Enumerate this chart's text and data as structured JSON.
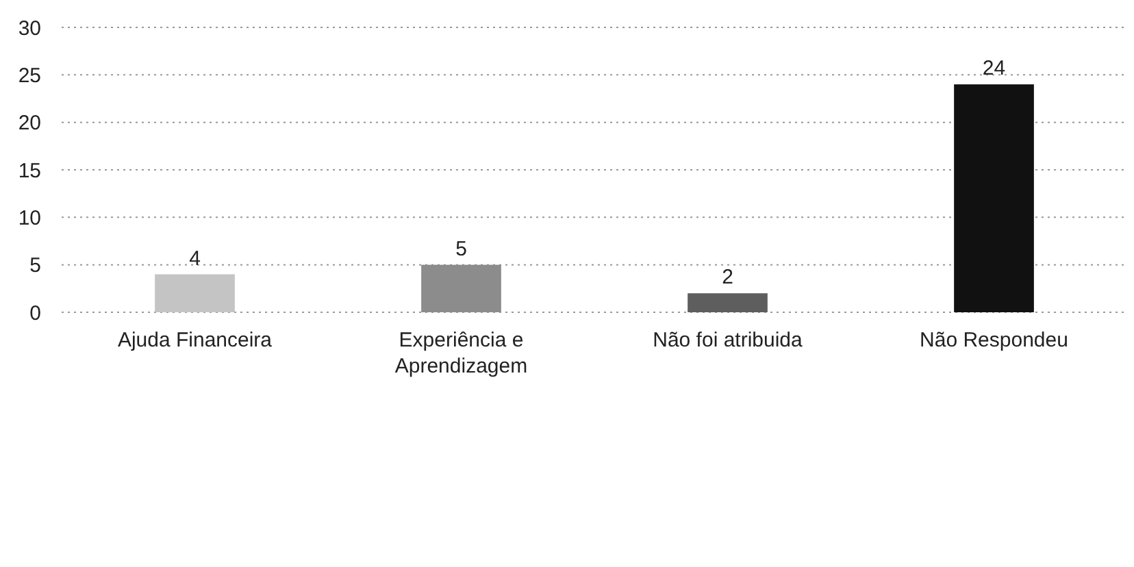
{
  "chart_data": {
    "type": "bar",
    "categories": [
      "Ajuda Financeira",
      "Experiência e Aprendizagem",
      "Não foi atribuida",
      "Não Respondeu"
    ],
    "values": [
      4,
      5,
      2,
      24
    ],
    "colors": [
      "#c4c4c4",
      "#8c8c8c",
      "#5e5e5e",
      "#111111"
    ],
    "ylim": [
      0,
      30
    ],
    "yticks": [
      0,
      5,
      10,
      15,
      20,
      25,
      30
    ],
    "grid": "y",
    "line_style": "dotted",
    "data_labels": true
  }
}
